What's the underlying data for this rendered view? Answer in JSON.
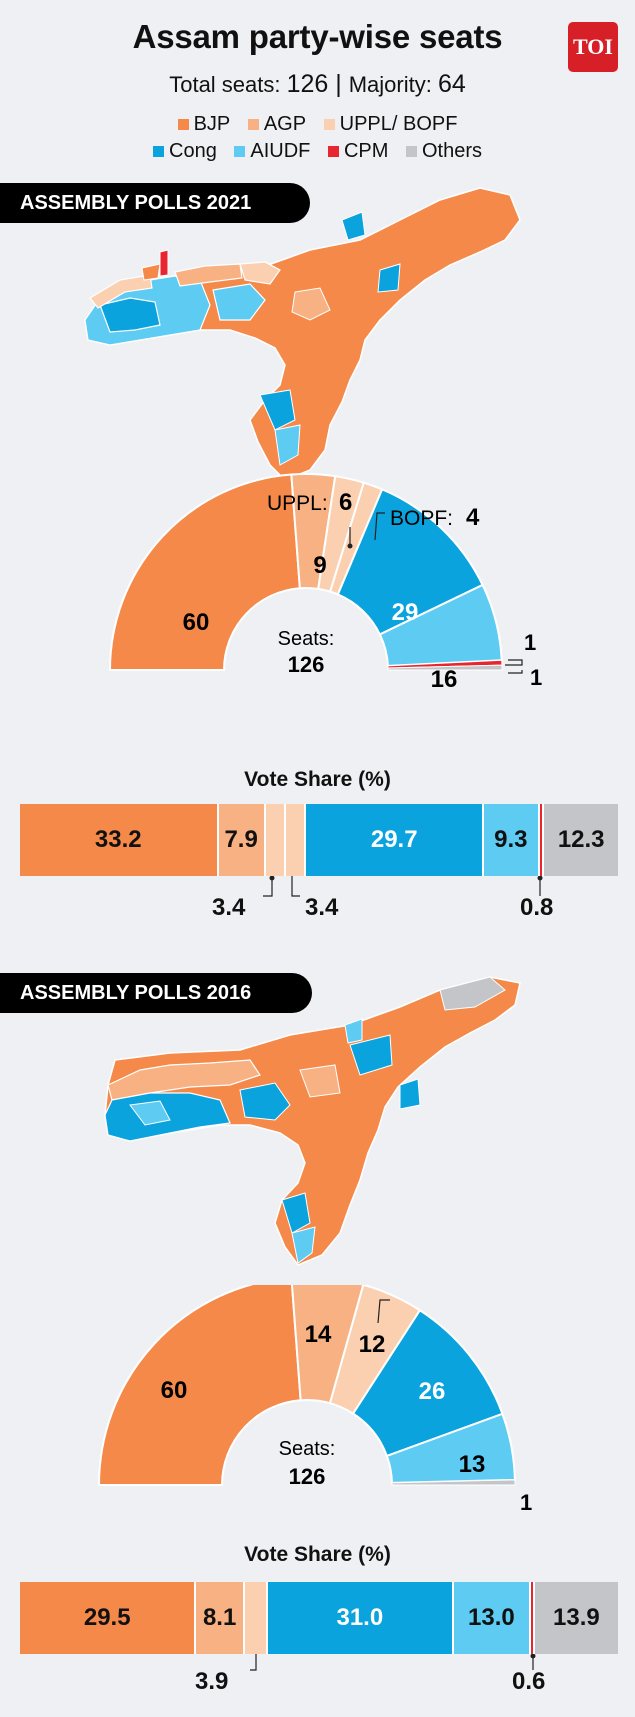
{
  "header": {
    "title": "Assam party-wise seats",
    "subtitle_prefix": "Total seats: ",
    "total_seats": "126",
    "separator": " | ",
    "majority_prefix": "Majority: ",
    "majority": "64",
    "logo_text": "TOI"
  },
  "legend": {
    "row1": [
      {
        "label": "BJP",
        "color": "#f4894a"
      },
      {
        "label": "AGP",
        "color": "#f7b183"
      },
      {
        "label": "UPPL/ BOPF",
        "color": "#fbd0b0"
      }
    ],
    "row2": [
      {
        "label": "Cong",
        "color": "#0aa3dd"
      },
      {
        "label": "AIUDF",
        "color": "#5ecbf3"
      },
      {
        "label": "CPM",
        "color": "#e8262f"
      },
      {
        "label": "Others",
        "color": "#c4c5c8"
      }
    ]
  },
  "colors": {
    "bjp": "#f4894a",
    "agp": "#f7b183",
    "uppl": "#fbd0b0",
    "cong": "#0aa3dd",
    "aiudf": "#5ecbf3",
    "cpm": "#e8262f",
    "others": "#c4c5c8"
  },
  "chart_data": [
    {
      "type": "pie",
      "year": "2021",
      "banner": "ASSEMBLY POLLS 2021",
      "center_label": "Seats:",
      "center_value": "126",
      "slices": [
        {
          "party": "BJP",
          "value": 60,
          "label": "60"
        },
        {
          "party": "AGP",
          "value": 9,
          "label": "9"
        },
        {
          "party": "UPPL",
          "value": 6,
          "label": "6",
          "callout": "UPPL: "
        },
        {
          "party": "BOPF",
          "value": 4,
          "label": "4",
          "callout": "BOPF: "
        },
        {
          "party": "Cong",
          "value": 29,
          "label": "29"
        },
        {
          "party": "AIUDF",
          "value": 16,
          "label": "16"
        },
        {
          "party": "CPM",
          "value": 1,
          "label": "1"
        },
        {
          "party": "Others",
          "value": 1,
          "label": "1"
        }
      ]
    },
    {
      "type": "bar",
      "year": "2021",
      "title": "Vote Share (%)",
      "segments": [
        {
          "party": "BJP",
          "value": 33.2,
          "label": "33.2"
        },
        {
          "party": "AGP",
          "value": 7.9,
          "label": "7.9"
        },
        {
          "party": "UPPL",
          "value": 3.4,
          "label": "3.4"
        },
        {
          "party": "BOPF",
          "value": 3.4,
          "label": "3.4"
        },
        {
          "party": "Cong",
          "value": 29.7,
          "label": "29.7"
        },
        {
          "party": "AIUDF",
          "value": 9.3,
          "label": "9.3"
        },
        {
          "party": "CPM",
          "value": 0.8,
          "label": "0.8"
        },
        {
          "party": "Others",
          "value": 12.3,
          "label": "12.3"
        }
      ]
    },
    {
      "type": "pie",
      "year": "2016",
      "banner": "ASSEMBLY POLLS 2016",
      "center_label": "Seats:",
      "center_value": "126",
      "slices": [
        {
          "party": "BJP",
          "value": 60,
          "label": "60"
        },
        {
          "party": "AGP",
          "value": 14,
          "label": "14"
        },
        {
          "party": "BOPF",
          "value": 12,
          "label": "12"
        },
        {
          "party": "Cong",
          "value": 26,
          "label": "26"
        },
        {
          "party": "AIUDF",
          "value": 13,
          "label": "13"
        },
        {
          "party": "Others",
          "value": 1,
          "label": "1"
        }
      ]
    },
    {
      "type": "bar",
      "year": "2016",
      "title": "Vote Share (%)",
      "segments": [
        {
          "party": "BJP",
          "value": 29.5,
          "label": "29.5"
        },
        {
          "party": "AGP",
          "value": 8.1,
          "label": "8.1"
        },
        {
          "party": "BOPF",
          "value": 3.9,
          "label": "3.9"
        },
        {
          "party": "Cong",
          "value": 31.0,
          "label": "31.0"
        },
        {
          "party": "AIUDF",
          "value": 13.0,
          "label": "13.0"
        },
        {
          "party": "CPM",
          "value": 0.6,
          "label": "0.6"
        },
        {
          "party": "Others",
          "value": 13.9,
          "label": "13.9"
        }
      ]
    }
  ]
}
